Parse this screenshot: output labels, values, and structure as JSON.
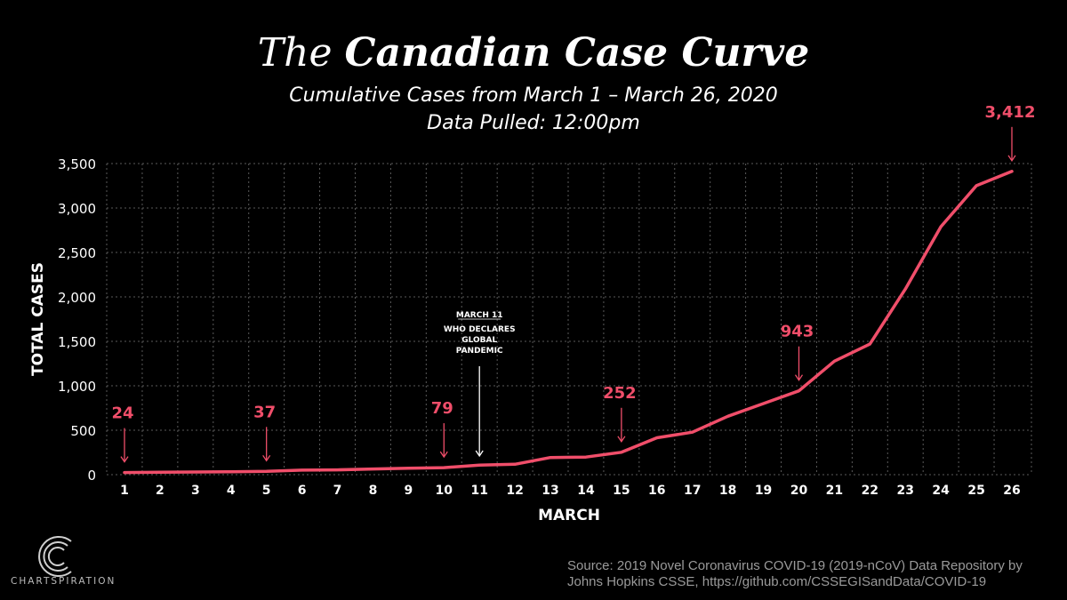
{
  "header": {
    "title_light": "The",
    "title_bold": "Canadian Case Curve",
    "subtitle": "Cumulative Cases from March 1 – March 26, 2020",
    "data_pulled": "Data Pulled: 12:00pm"
  },
  "chart_data": {
    "type": "line",
    "xlabel": "MARCH",
    "ylabel": "TOTAL CASES",
    "x": [
      1,
      2,
      3,
      4,
      5,
      6,
      7,
      8,
      9,
      10,
      11,
      12,
      13,
      14,
      15,
      16,
      17,
      18,
      19,
      20,
      21,
      22,
      23,
      24,
      25,
      26
    ],
    "series": [
      {
        "values": [
          24,
          27,
          30,
          33,
          37,
          51,
          54,
          64,
          72,
          79,
          108,
          117,
          193,
          198,
          252,
          415,
          478,
          657,
          800,
          943,
          1277,
          1469,
          2088,
          2790,
          3251,
          3412
        ]
      }
    ],
    "ylim": [
      0,
      3500
    ],
    "yticks": [
      0,
      500,
      1000,
      1500,
      2000,
      2500,
      3000,
      3500
    ],
    "ytick_labels": [
      "0",
      "500",
      "1,000",
      "1,500",
      "2,000",
      "2,500",
      "3,000",
      "3,500"
    ],
    "grid": true,
    "line_color": "#f04e6a",
    "value_labels": [
      {
        "x": 1,
        "text": "24"
      },
      {
        "x": 5,
        "text": "37"
      },
      {
        "x": 10,
        "text": "79"
      },
      {
        "x": 15,
        "text": "252"
      },
      {
        "x": 20,
        "text": "943"
      },
      {
        "x": 26,
        "text": "3,412"
      }
    ],
    "annotation": {
      "x": 11,
      "heading": "MARCH 11",
      "lines": [
        "WHO DECLARES",
        "GLOBAL",
        "PANDEMIC"
      ]
    }
  },
  "branding": {
    "logo_text": "CHARTSPIRATION"
  },
  "footer": {
    "source_line1": "Source: 2019 Novel Coronavirus COVID-19 (2019-nCoV) Data Repository by",
    "source_line2": "Johns Hopkins CSSE, https://github.com/CSSEGISandData/COVID-19"
  }
}
